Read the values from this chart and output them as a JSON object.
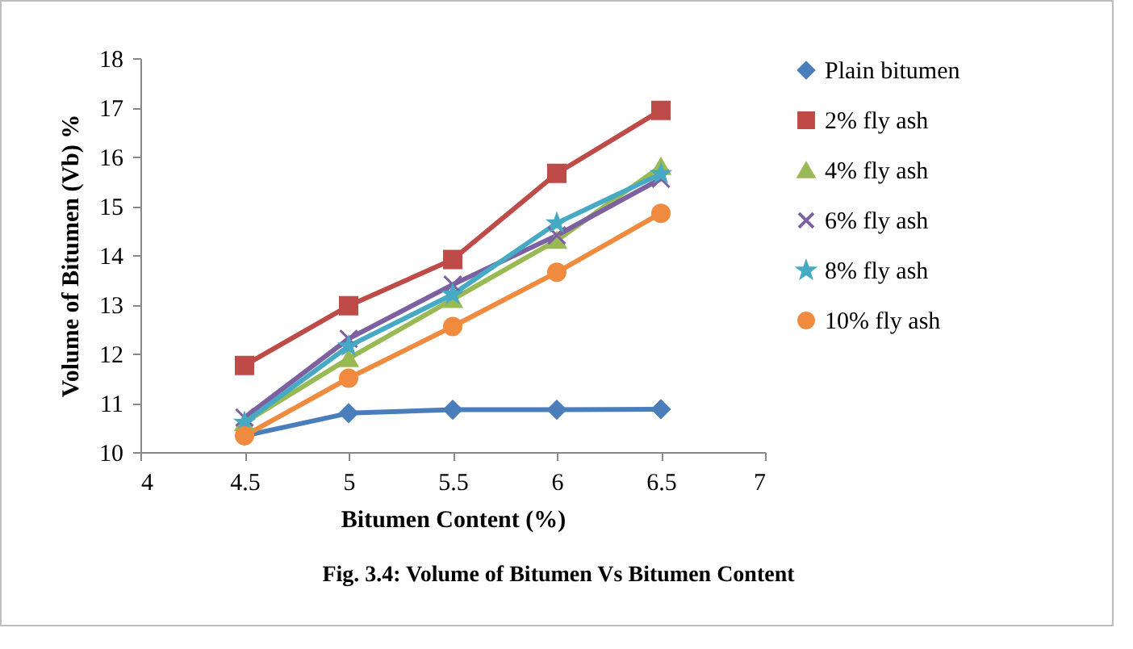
{
  "chart_data": {
    "type": "line",
    "xlabel": "Bitumen Content (%)",
    "ylabel": "Volume of Bitumen (Vb) %",
    "x": [
      4.5,
      5,
      5.5,
      6,
      6.5
    ],
    "xlim": [
      4,
      7
    ],
    "xticks": [
      4,
      4.5,
      5,
      5.5,
      6,
      6.5,
      7
    ],
    "ylim": [
      10,
      18
    ],
    "yticks": [
      10,
      11,
      12,
      13,
      14,
      15,
      16,
      17,
      18
    ],
    "grid": false,
    "legend": "right",
    "series": [
      {
        "name": "Plain bitumen",
        "color": "#4a7ebb",
        "marker": "diamond",
        "values": [
          10.33,
          10.79,
          10.86,
          10.86,
          10.87
        ]
      },
      {
        "name": "2% fly ash",
        "color": "#be4b48",
        "marker": "square",
        "values": [
          11.76,
          12.97,
          13.91,
          15.66,
          16.94
        ]
      },
      {
        "name": "4% fly ash",
        "color": "#98b954",
        "marker": "triangle",
        "values": [
          10.6,
          11.9,
          13.1,
          14.3,
          15.8
        ]
      },
      {
        "name": "6% fly ash",
        "color": "#7d60a0",
        "marker": "cross",
        "values": [
          10.7,
          12.3,
          13.4,
          14.4,
          15.55
        ]
      },
      {
        "name": "8% fly ash",
        "color": "#46aac5",
        "marker": "star",
        "values": [
          10.6,
          12.15,
          13.2,
          14.65,
          15.65
        ]
      },
      {
        "name": "10% fly ash",
        "color": "#f08a3e",
        "marker": "circle",
        "values": [
          10.33,
          11.5,
          12.55,
          13.65,
          14.85
        ]
      }
    ],
    "annotations": [
      "Fig. 3.4: Volume of Bitumen Vs Bitumen Content"
    ]
  }
}
